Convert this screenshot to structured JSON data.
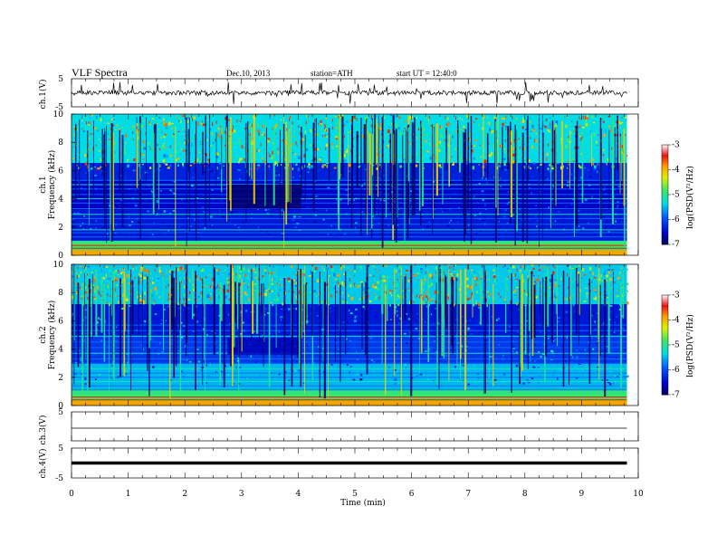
{
  "header": {
    "title": "VLF  Spectra",
    "date": "Dec.10, 2013",
    "station": "station=ATH",
    "start": "start  UT  =    12:40:0"
  },
  "chart_data": [
    {
      "type": "line",
      "name": "ch1-waveform",
      "ylabel": "ch.1(V)",
      "ylim": [
        -5,
        5
      ],
      "yticks": [
        "5",
        "-5"
      ],
      "xlim": [
        0,
        10
      ]
    },
    {
      "type": "heatmap",
      "name": "ch1-spectrogram",
      "ylabel_top": "ch.1",
      "ylabel": "Frequency  (kHz)",
      "ylim": [
        0,
        10
      ],
      "yticks": [
        "0",
        "2",
        "4",
        "6",
        "8",
        "10"
      ],
      "xlim": [
        0,
        10
      ],
      "data_end_min": 9.8,
      "colorbar": {
        "label": "log(PSD(V²/Hz)",
        "range": [
          -7,
          -3
        ],
        "ticks": [
          "-3",
          "-4",
          "-5",
          "-6",
          "-7"
        ]
      }
    },
    {
      "type": "heatmap",
      "name": "ch2-spectrogram",
      "ylabel_top": "ch.2",
      "ylabel": "Frequency  (kHz)",
      "ylim": [
        0,
        10
      ],
      "yticks": [
        "0",
        "2",
        "4",
        "6",
        "8",
        "10"
      ],
      "xlim": [
        0,
        10
      ],
      "data_end_min": 9.8,
      "colorbar": {
        "label": "log(PSD(V²/Hz)",
        "range": [
          -7,
          -3
        ],
        "ticks": [
          "-3",
          "-4",
          "-5",
          "-6",
          "-7"
        ]
      }
    },
    {
      "type": "line",
      "name": "ch3-waveform",
      "ylabel": "ch.3(V)",
      "ylim": [
        -5,
        5
      ],
      "yticks": [
        "5"
      ],
      "xlim": [
        0,
        10
      ]
    },
    {
      "type": "line",
      "name": "ch4-waveform",
      "ylabel": "ch.4(V)",
      "ylim": [
        -5,
        5
      ],
      "yticks": [
        "5",
        "-5"
      ],
      "xlim": [
        0,
        10
      ],
      "xlabel": "Time  (min)",
      "xticks": [
        "0",
        "1",
        "2",
        "3",
        "4",
        "5",
        "6",
        "7",
        "8",
        "9",
        "10"
      ]
    }
  ]
}
